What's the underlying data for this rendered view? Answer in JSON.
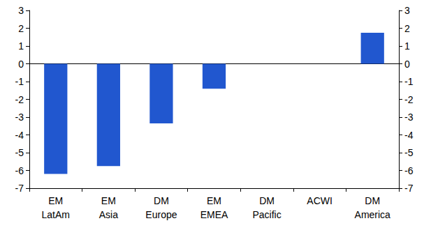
{
  "chart_data": {
    "type": "bar",
    "categories": [
      "EM\nLatAm",
      "EM\nAsia",
      "DM\nEurope",
      "EM\nEMEA",
      "DM\nPacific",
      "ACWI",
      "DM\nAmerica"
    ],
    "values": [
      -6.2,
      -5.75,
      -3.35,
      -1.4,
      0,
      0,
      1.75
    ],
    "color": "#2157cf",
    "ylim": [
      -7,
      3
    ],
    "yticks": [
      -7,
      -6,
      -5,
      -4,
      -3,
      -2,
      -1,
      0,
      1,
      2,
      3
    ],
    "y2lim": [
      -7,
      3
    ],
    "y2ticks": [
      -7,
      -6,
      -5,
      -4,
      -3,
      -2,
      -1,
      0,
      1,
      2,
      3
    ],
    "grid": false
  }
}
